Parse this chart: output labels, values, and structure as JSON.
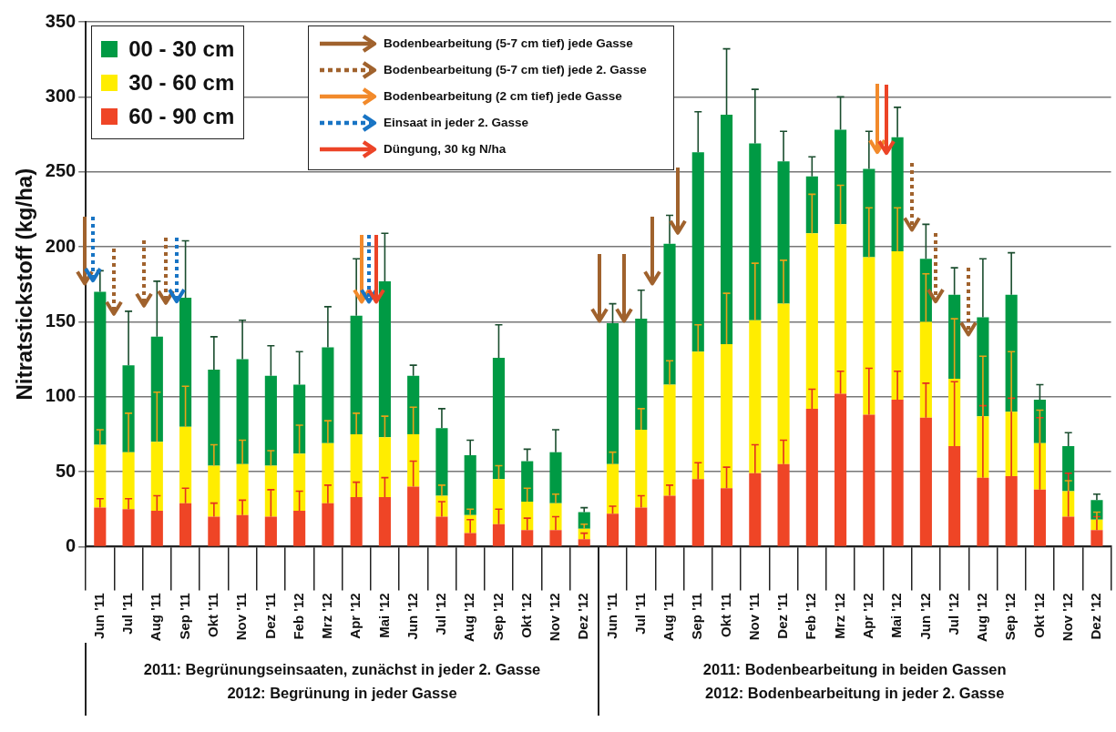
{
  "chart_data": {
    "type": "bar",
    "ylabel": "Nitratstickstoff (kg/ha)",
    "categories": [
      "Jun '11",
      "Jul '11",
      "Aug '11",
      "Sep '11",
      "Okt '11",
      "Nov '11",
      "Dez '11",
      "Feb '12",
      "Mrz '12",
      "Apr '12",
      "Mai '12",
      "Jun '12",
      "Jul '12",
      "Aug '12",
      "Sep '12",
      "Okt '12",
      "Nov '12",
      "Dez '12",
      "Jun '11",
      "Jul '11",
      "Aug '11",
      "Sep '11",
      "Okt '11",
      "Nov '11",
      "Dez '11",
      "Feb '12",
      "Mrz '12",
      "Apr '12",
      "Mai '12",
      "Jun '12",
      "Jul '12",
      "Aug '12",
      "Sep '12",
      "Okt '12",
      "Nov '12",
      "Dez '12"
    ],
    "stacked": true,
    "ylim": [
      0,
      350
    ],
    "yticks": [
      0,
      50,
      100,
      150,
      200,
      250,
      300,
      350
    ],
    "grid": "y",
    "legend": "top left",
    "series": [
      {
        "name": "60 - 90 cm",
        "color": "#ef4526",
        "values": [
          26,
          25,
          24,
          29,
          20,
          21,
          20,
          24,
          29,
          33,
          33,
          40,
          20,
          9,
          15,
          11,
          11,
          5,
          22,
          26,
          34,
          45,
          39,
          49,
          55,
          92,
          102,
          88,
          98,
          86,
          67,
          46,
          47,
          38,
          20,
          11
        ],
        "errors": [
          [
            26,
            32
          ],
          [
            25,
            32
          ],
          [
            24,
            34
          ],
          [
            29,
            39
          ],
          [
            20,
            29
          ],
          [
            21,
            31
          ],
          [
            20,
            38
          ],
          [
            24,
            37
          ],
          [
            29,
            41
          ],
          [
            33,
            43
          ],
          [
            33,
            46
          ],
          [
            40,
            57
          ],
          [
            20,
            30
          ],
          [
            9,
            18
          ],
          [
            15,
            25
          ],
          [
            11,
            19
          ],
          [
            11,
            20
          ],
          [
            5,
            9
          ],
          [
            22,
            27
          ],
          [
            26,
            34
          ],
          [
            34,
            41
          ],
          [
            45,
            56
          ],
          [
            39,
            53
          ],
          [
            49,
            68
          ],
          [
            55,
            71
          ],
          [
            92,
            105
          ],
          [
            102,
            117
          ],
          [
            88,
            119
          ],
          [
            98,
            117
          ],
          [
            86,
            109
          ],
          [
            67,
            110
          ],
          [
            46,
            94
          ],
          [
            47,
            99
          ],
          [
            38,
            86
          ],
          [
            20,
            49
          ],
          [
            11,
            20
          ]
        ]
      },
      {
        "name": "30 - 60 cm",
        "color": "#ffed00",
        "values": [
          42,
          38,
          46,
          51,
          34,
          34,
          34,
          38,
          40,
          42,
          40,
          35,
          14,
          12,
          30,
          19,
          18,
          7,
          33,
          52,
          74,
          85,
          96,
          102,
          107,
          117,
          113,
          105,
          99,
          64,
          45,
          41,
          43,
          31,
          17,
          7
        ],
        "errors": [
          [
            68,
            78
          ],
          [
            63,
            89
          ],
          [
            70,
            103
          ],
          [
            80,
            107
          ],
          [
            54,
            68
          ],
          [
            55,
            71
          ],
          [
            54,
            64
          ],
          [
            62,
            81
          ],
          [
            69,
            84
          ],
          [
            75,
            89
          ],
          [
            73,
            87
          ],
          [
            75,
            93
          ],
          [
            34,
            41
          ],
          [
            21,
            25
          ],
          [
            45,
            54
          ],
          [
            30,
            39
          ],
          [
            29,
            35
          ],
          [
            12,
            15
          ],
          [
            55,
            63
          ],
          [
            78,
            92
          ],
          [
            108,
            124
          ],
          [
            130,
            148
          ],
          [
            135,
            169
          ],
          [
            151,
            189
          ],
          [
            162,
            191
          ],
          [
            209,
            235
          ],
          [
            215,
            241
          ],
          [
            193,
            226
          ],
          [
            197,
            226
          ],
          [
            150,
            182
          ],
          [
            112,
            152
          ],
          [
            87,
            127
          ],
          [
            90,
            130
          ],
          [
            69,
            91
          ],
          [
            37,
            44
          ],
          [
            18,
            23
          ]
        ]
      },
      {
        "name": "00 - 30 cm",
        "color": "#009a44",
        "values": [
          102,
          58,
          70,
          86,
          64,
          70,
          60,
          46,
          64,
          79,
          104,
          39,
          45,
          40,
          81,
          27,
          34,
          11,
          94,
          74,
          94,
          133,
          153,
          118,
          95,
          38,
          63,
          59,
          76,
          42,
          56,
          66,
          78,
          29,
          30,
          13
        ],
        "errors": [
          [
            170,
            184
          ],
          [
            121,
            157
          ],
          [
            140,
            177
          ],
          [
            166,
            204
          ],
          [
            118,
            140
          ],
          [
            125,
            151
          ],
          [
            114,
            134
          ],
          [
            108,
            130
          ],
          [
            133,
            160
          ],
          [
            154,
            192
          ],
          [
            177,
            209
          ],
          [
            114,
            121
          ],
          [
            79,
            92
          ],
          [
            61,
            71
          ],
          [
            126,
            148
          ],
          [
            57,
            65
          ],
          [
            63,
            78
          ],
          [
            23,
            26
          ],
          [
            149,
            162
          ],
          [
            152,
            171
          ],
          [
            202,
            221
          ],
          [
            263,
            290
          ],
          [
            288,
            332
          ],
          [
            269,
            305
          ],
          [
            257,
            277
          ],
          [
            247,
            260
          ],
          [
            278,
            300
          ],
          [
            252,
            277
          ],
          [
            273,
            293
          ],
          [
            192,
            215
          ],
          [
            168,
            186
          ],
          [
            153,
            192
          ],
          [
            168,
            196
          ],
          [
            98,
            108
          ],
          [
            67,
            76
          ],
          [
            31,
            35
          ]
        ]
      }
    ],
    "annotations": [
      "Bodenbearbeitung (5-7 cm tief) jede Gasse",
      "Bodenbearbeitung (5-7 cm tief) jede 2. Gasse",
      "Bodenbearbeitung (2 cm tief) jede Gasse",
      "Einsaat in jeder 2. Gasse",
      "Düngung, 30 kg N/ha",
      "2011: Begrünungseinsaaten, zunächst in jeder 2. Gasse",
      "2012: Begrünung in jeder Gasse",
      "2011: Bodenbearbeitung in beiden Gassen",
      "2012: Bodenbearbeitung in jeder 2. Gasse"
    ]
  }
}
